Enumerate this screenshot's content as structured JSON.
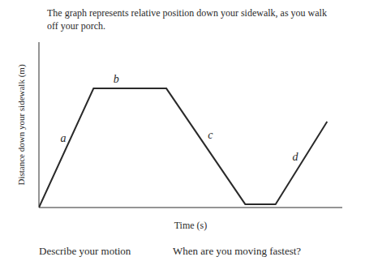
{
  "chart_data": {
    "type": "line",
    "title": "The graph represents relative position down your sidewalk, as you walk\noff your porch.",
    "x_label": "Time (s)",
    "y_label": "Distance down your sidewalk (m)",
    "x": [
      0.0,
      0.18,
      0.42,
      0.68,
      0.78,
      0.95
    ],
    "values": [
      0.0,
      0.72,
      0.72,
      0.02,
      0.02,
      0.52
    ],
    "color": "#2a2a2a",
    "xlim": [
      0.0,
      1.0
    ],
    "ylim": [
      0.0,
      1.0
    ],
    "tick_labels": false,
    "annotations": [
      {
        "text": "a",
        "x": 0.08,
        "y": 0.42
      },
      {
        "text": "b",
        "x": 0.255,
        "y": 0.78
      },
      {
        "text": "c",
        "x": 0.565,
        "y": 0.44
      },
      {
        "text": "d",
        "x": 0.845,
        "y": 0.31
      },
      {
        "text": "Describe your motion"
      },
      {
        "text": "When are you moving fastest?"
      }
    ]
  }
}
